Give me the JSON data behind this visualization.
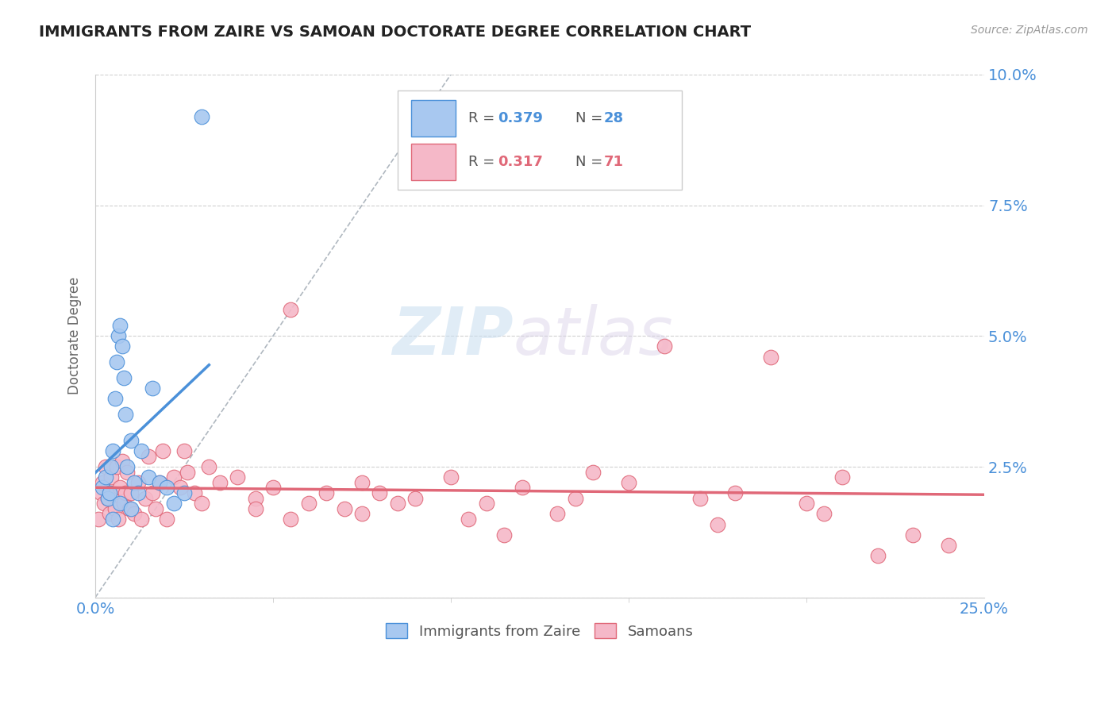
{
  "title": "IMMIGRANTS FROM ZAIRE VS SAMOAN DOCTORATE DEGREE CORRELATION CHART",
  "source_text": "Source: ZipAtlas.com",
  "xlim": [
    0.0,
    25.0
  ],
  "ylim": [
    0.0,
    10.0
  ],
  "ylabel_ticks": [
    0.0,
    2.5,
    5.0,
    7.5,
    10.0
  ],
  "ylabel_labels": [
    "",
    "2.5%",
    "5.0%",
    "7.5%",
    "10.0%"
  ],
  "zaire_R": 0.379,
  "zaire_N": 28,
  "samoan_R": 0.317,
  "samoan_N": 71,
  "zaire_color": "#a8c8f0",
  "samoan_color": "#f5b8c8",
  "zaire_line_color": "#4a90d9",
  "samoan_line_color": "#e06878",
  "watermark_zip": "ZIP",
  "watermark_atlas": "atlas",
  "background_color": "#ffffff",
  "zaire_x": [
    0.2,
    0.3,
    0.35,
    0.4,
    0.45,
    0.5,
    0.55,
    0.6,
    0.65,
    0.7,
    0.75,
    0.8,
    0.85,
    0.9,
    1.0,
    1.1,
    1.2,
    1.3,
    1.5,
    1.6,
    1.8,
    2.0,
    2.2,
    2.5,
    0.5,
    0.7,
    1.0,
    3.0
  ],
  "zaire_y": [
    2.1,
    2.3,
    1.9,
    2.0,
    2.5,
    2.8,
    3.8,
    4.5,
    5.0,
    5.2,
    4.8,
    4.2,
    3.5,
    2.5,
    3.0,
    2.2,
    2.0,
    2.8,
    2.3,
    4.0,
    2.2,
    2.1,
    1.8,
    2.0,
    1.5,
    1.8,
    1.7,
    9.2
  ],
  "samoan_x": [
    0.1,
    0.15,
    0.2,
    0.25,
    0.3,
    0.35,
    0.4,
    0.45,
    0.5,
    0.55,
    0.6,
    0.65,
    0.7,
    0.75,
    0.8,
    0.85,
    0.9,
    0.95,
    1.0,
    1.1,
    1.2,
    1.3,
    1.4,
    1.5,
    1.6,
    1.7,
    1.8,
    1.9,
    2.0,
    2.2,
    2.4,
    2.6,
    2.8,
    3.0,
    3.5,
    4.0,
    4.5,
    5.0,
    5.5,
    6.0,
    6.5,
    7.0,
    7.5,
    8.0,
    9.0,
    10.0,
    11.0,
    12.0,
    13.0,
    14.0,
    15.0,
    16.0,
    17.0,
    18.0,
    19.0,
    20.0,
    21.0,
    22.0,
    23.0,
    2.5,
    3.2,
    4.5,
    5.5,
    7.5,
    8.5,
    10.5,
    11.5,
    13.5,
    17.5,
    20.5,
    24.0
  ],
  "samoan_y": [
    1.5,
    2.0,
    2.2,
    1.8,
    2.5,
    1.9,
    1.6,
    2.3,
    2.0,
    1.7,
    2.5,
    1.5,
    2.1,
    2.6,
    1.8,
    2.0,
    2.4,
    1.7,
    2.0,
    1.6,
    2.2,
    1.5,
    1.9,
    2.7,
    2.0,
    1.7,
    2.2,
    2.8,
    1.5,
    2.3,
    2.1,
    2.4,
    2.0,
    1.8,
    2.2,
    2.3,
    1.9,
    2.1,
    1.5,
    1.8,
    2.0,
    1.7,
    2.2,
    2.0,
    1.9,
    2.3,
    1.8,
    2.1,
    1.6,
    2.4,
    2.2,
    4.8,
    1.9,
    2.0,
    4.6,
    1.8,
    2.3,
    0.8,
    1.2,
    2.8,
    2.5,
    1.7,
    5.5,
    1.6,
    1.8,
    1.5,
    1.2,
    1.9,
    1.4,
    1.6,
    1.0
  ]
}
